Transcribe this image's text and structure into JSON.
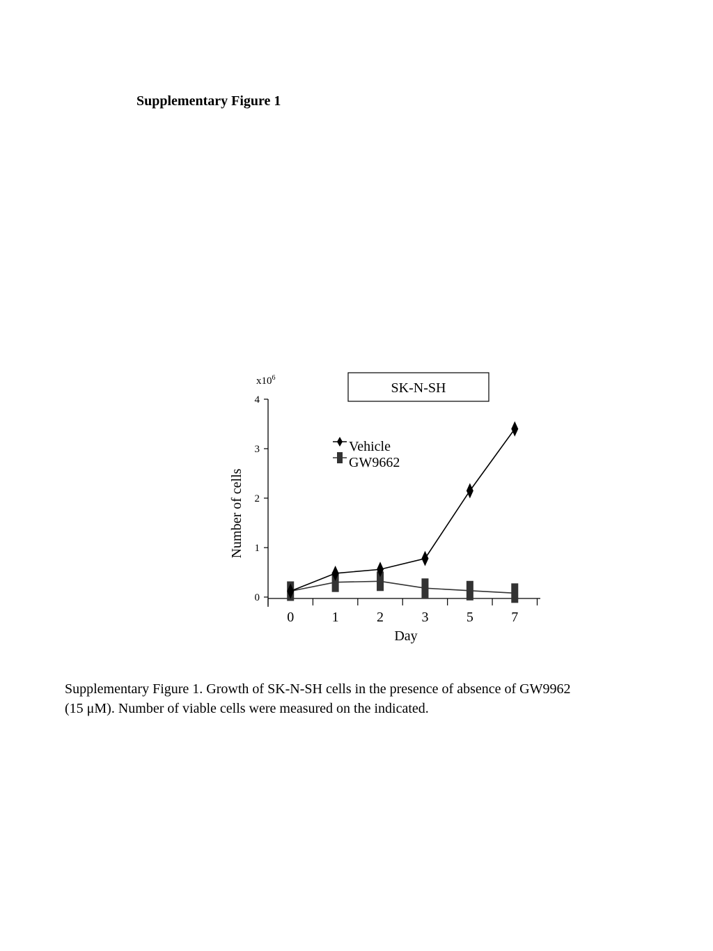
{
  "heading": "Supplementary Figure 1",
  "caption": {
    "line1": "Supplementary Figure 1. Growth of SK-N-SH cells in the presence of absence of GW9962",
    "line2": "(15 μM). Number of viable cells were measured on the indicated."
  },
  "chart_data": {
    "type": "line",
    "title": "SK-N-SH",
    "xlabel": "Day",
    "ylabel": "Number of cells",
    "y_multiplier": {
      "base": "x10",
      "exp": "6"
    },
    "categories": [
      "0",
      "1",
      "2",
      "3",
      "5",
      "7"
    ],
    "yticks": [
      0,
      1,
      2,
      3,
      4
    ],
    "ylim": [
      0,
      4
    ],
    "legend_position": "top-left",
    "grid": false,
    "series": [
      {
        "name": "Vehicle",
        "marker": "diamond",
        "color": "#000000",
        "values": [
          0.12,
          0.48,
          0.56,
          0.78,
          2.15,
          3.4
        ]
      },
      {
        "name": "GW9662",
        "marker": "square",
        "color": "#333333",
        "values": [
          0.12,
          0.3,
          0.32,
          0.18,
          0.13,
          0.08
        ]
      }
    ]
  }
}
